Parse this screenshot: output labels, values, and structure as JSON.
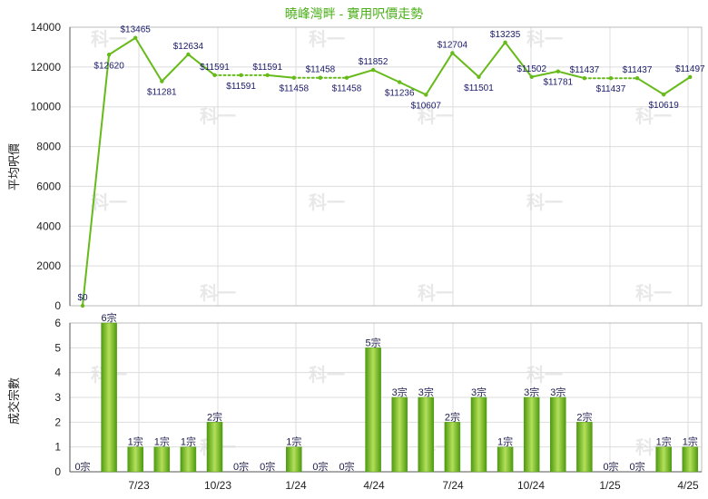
{
  "title": "曉峰灣畔 - 實用呎價走勢",
  "watermark": "科一",
  "colors": {
    "line": "#66bb1a",
    "bar_light": "#b4e05a",
    "bar_dark": "#4e9a10",
    "grid": "#dddddd",
    "title": "#4caf1a"
  },
  "chart_data": [
    {
      "type": "line",
      "ylabel": "平均呎價",
      "ylim": [
        0,
        14000
      ],
      "yticks": [
        "0",
        "2000",
        "4000",
        "6000",
        "8000",
        "10000",
        "12000",
        "14000"
      ],
      "values": [
        0,
        12620,
        13465,
        11281,
        12634,
        11591,
        11591,
        11591,
        11458,
        11458,
        11458,
        11852,
        11236,
        10607,
        12704,
        11501,
        13235,
        11502,
        11781,
        11437,
        11437,
        11437,
        10619,
        11497
      ],
      "labels": [
        "$0",
        "$12620",
        "$13465",
        "$11281",
        "$12634",
        "$11591",
        "$11591",
        "$11591",
        "$11458",
        "$11458",
        "$11458",
        "$11852",
        "$11236",
        "$10607",
        "$12704",
        "$11501",
        "$13235",
        "$11502",
        "$11781",
        "$11437",
        "$11437",
        "$11437",
        "$10619",
        "$11497"
      ],
      "label_pos": [
        "above",
        "below",
        "above",
        "below",
        "above",
        "above",
        "below",
        "above",
        "below",
        "above",
        "below",
        "above",
        "below",
        "below",
        "above",
        "below",
        "above",
        "above",
        "below",
        "above",
        "below",
        "above",
        "below",
        "above"
      ],
      "no_transaction": [
        false,
        false,
        false,
        false,
        false,
        false,
        true,
        false,
        false,
        true,
        false,
        false,
        false,
        false,
        false,
        false,
        false,
        false,
        false,
        false,
        true,
        false,
        false,
        false
      ],
      "grid": true
    },
    {
      "type": "bar",
      "ylabel": "成交宗數",
      "ylim": [
        0,
        6
      ],
      "yticks": [
        "0",
        "1",
        "2",
        "3",
        "4",
        "5",
        "6"
      ],
      "values": [
        0,
        6,
        1,
        1,
        1,
        2,
        0,
        0,
        1,
        0,
        0,
        5,
        3,
        3,
        2,
        3,
        1,
        3,
        3,
        2,
        0,
        0,
        1,
        1
      ],
      "labels": [
        "0宗",
        "6宗",
        "1宗",
        "1宗",
        "1宗",
        "2宗",
        "0宗",
        "0宗",
        "1宗",
        "0宗",
        "0宗",
        "5宗",
        "3宗",
        "3宗",
        "2宗",
        "3宗",
        "1宗",
        "3宗",
        "3宗",
        "2宗",
        "0宗",
        "0宗",
        "1宗",
        "1宗"
      ],
      "x_ticks": [
        "7/23",
        "10/23",
        "1/24",
        "4/24",
        "7/24",
        "10/24",
        "1/25",
        "4/25"
      ],
      "grid": true
    }
  ]
}
